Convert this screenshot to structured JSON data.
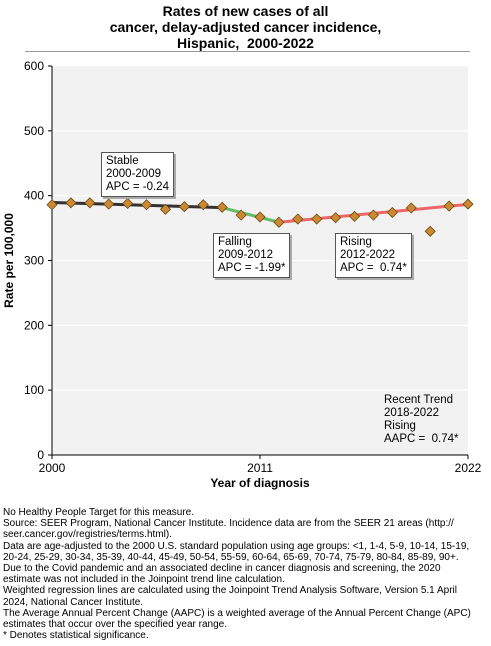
{
  "title_lines": [
    "Rates of new cases of all",
    "cancer, delay-adjusted cancer incidence,",
    "Hispanic,  2000-2022"
  ],
  "colors": {
    "plot_bg": "#f2f2f2",
    "grid": "#ffffff",
    "stable_line": "#333333",
    "falling_line": "#66bb66",
    "rising_line": "#ee6666",
    "marker_fill": "#cc8833",
    "marker_stroke": "#6b4a10"
  },
  "annotations": [
    {
      "id": "stable",
      "lines": [
        "Stable",
        "2000-2009",
        "APC = -0.24"
      ]
    },
    {
      "id": "falling",
      "lines": [
        "Falling",
        "2009-2012",
        "APC = -1.99*"
      ]
    },
    {
      "id": "rising",
      "lines": [
        "Rising",
        "2012-2022",
        "APC =  0.74*"
      ]
    },
    {
      "id": "recent",
      "lines": [
        "Recent Trend",
        "2018-2022",
        "Rising",
        "AAPC =  0.74*"
      ]
    }
  ],
  "chart_data": {
    "type": "line",
    "title": "Rates of new cases of all cancer, delay-adjusted cancer incidence, Hispanic,  2000-2022",
    "xlabel": "Year of diagnosis",
    "ylabel": "Rate per 100,000",
    "xlim": [
      2000,
      2022
    ],
    "ylim": [
      0,
      600
    ],
    "x_ticks": [
      2000,
      2011,
      2022
    ],
    "y_ticks": [
      0,
      100,
      200,
      300,
      400,
      500,
      600
    ],
    "grid": true,
    "observed": {
      "x": [
        2000,
        2001,
        2002,
        2003,
        2004,
        2005,
        2006,
        2007,
        2008,
        2009,
        2010,
        2011,
        2012,
        2013,
        2014,
        2015,
        2016,
        2017,
        2018,
        2019,
        2020,
        2021,
        2022
      ],
      "y": [
        386,
        389,
        389,
        387,
        388,
        386,
        379,
        383,
        386,
        382,
        370,
        367,
        359,
        364,
        364,
        366,
        368,
        370,
        374,
        381,
        345,
        384,
        387
      ]
    },
    "trend_segments": [
      {
        "label": "Stable",
        "x": [
          2000,
          2009
        ],
        "y": [
          389.5,
          381.5
        ]
      },
      {
        "label": "Falling",
        "x": [
          2009,
          2012
        ],
        "y": [
          381.5,
          359.0
        ]
      },
      {
        "label": "Rising",
        "x": [
          2012,
          2022
        ],
        "y": [
          359.0,
          386.5
        ]
      }
    ]
  },
  "footnotes": [
    "No Healthy People Target for this measure.",
    "Source: SEER Program, National Cancer Institute. Incidence data are from the SEER 21 areas (http://",
    "seer.cancer.gov/registries/terms.html).",
    "Data are age-adjusted to the 2000 U.S. standard population using age groups: <1, 1-4, 5-9, 10-14, 15-19,",
    "20-24, 25-29, 30-34, 35-39, 40-44, 45-49, 50-54, 55-59, 60-64, 65-69, 70-74, 75-79, 80-84, 85-89, 90+.",
    "Due to the Covid pandemic and an associated decline in cancer diagnosis and screening, the 2020",
    "estimate was not included in the Joinpoint trend line calculation.",
    "Weighted regression lines are calculated using the Joinpoint Trend Analysis Software, Version 5.1 April",
    "2024, National Cancer Institute.",
    "The Average Annual Percent Change (AAPC) is a weighted average of the Annual Percent Change (APC)",
    "estimates that occur over the specified year range.",
    "* Denotes statistical significance."
  ]
}
